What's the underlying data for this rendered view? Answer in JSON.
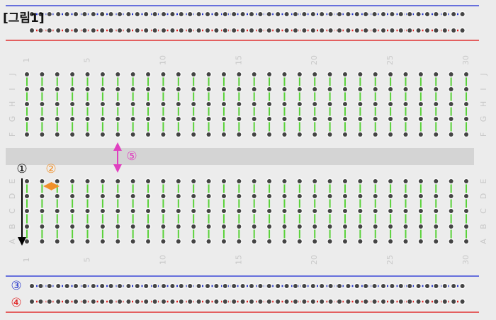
{
  "title": "[그림1]",
  "markers": {
    "m1": "①",
    "m2": "②",
    "m3": "③",
    "m4": "④",
    "m5": "⑤"
  },
  "column_numbers_top": [
    "1",
    "5",
    "10",
    "15",
    "20",
    "25",
    "30"
  ],
  "column_numbers_bottom": [
    "1",
    "5",
    "10",
    "15",
    "20",
    "25",
    "30"
  ],
  "rows_top": [
    "J",
    "I",
    "H",
    "G",
    "F"
  ],
  "rows_bottom": [
    "E",
    "D",
    "C",
    "B",
    "A"
  ]
}
